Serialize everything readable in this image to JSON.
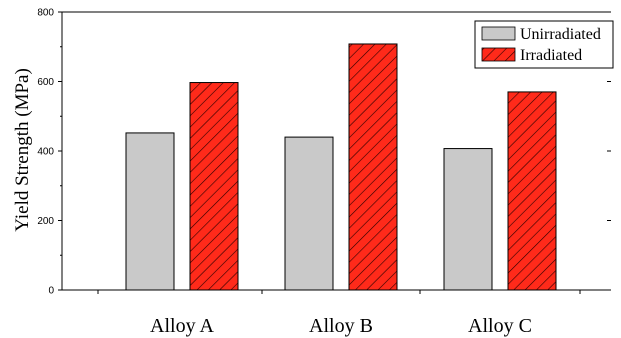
{
  "chart_data": {
    "type": "bar",
    "title": "",
    "xlabel": "",
    "ylabel": "Yield Strength (MPa)",
    "categories": [
      "Alloy A",
      "Alloy B",
      "Alloy C"
    ],
    "series": [
      {
        "name": "Unirradiated",
        "values": [
          452,
          440,
          407
        ],
        "color": "#c9c9c9",
        "pattern": "none"
      },
      {
        "name": "Irradiated",
        "values": [
          597,
          708,
          570
        ],
        "color": "#ff2a1a",
        "pattern": "diagonal-hatch"
      }
    ],
    "ylim": [
      0,
      800
    ],
    "yticks": [
      "0",
      "200",
      "400",
      "600",
      "800"
    ],
    "grid": false,
    "legend_position": "top-right"
  }
}
